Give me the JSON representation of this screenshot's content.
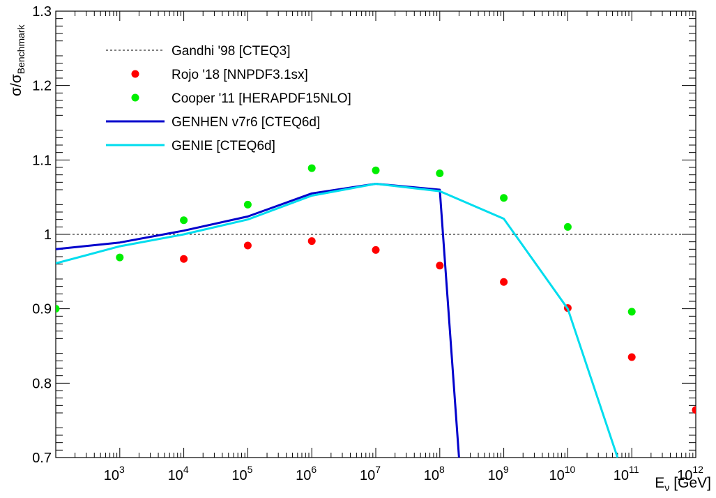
{
  "chart_data": {
    "type": "scatter",
    "xlabel": "E",
    "xlabel_sub": "ν",
    "xlabel_unit": "[GeV]",
    "ylabel": "σ/σ",
    "ylabel_sub": "Benchmark",
    "x_log_scale": true,
    "xlim": [
      100,
      1000000000000
    ],
    "ylim": [
      0.7,
      1.3
    ],
    "grid": false,
    "legend_position": "top-left",
    "y_ticks": [
      {
        "value": 0.7,
        "label": "0.7"
      },
      {
        "value": 0.8,
        "label": "0.8"
      },
      {
        "value": 0.9,
        "label": "0.9"
      },
      {
        "value": 1.0,
        "label": "1"
      },
      {
        "value": 1.1,
        "label": "1.1"
      },
      {
        "value": 1.2,
        "label": "1.2"
      },
      {
        "value": 1.3,
        "label": "1.3"
      }
    ],
    "x_ticks": [
      {
        "exp": 3,
        "base": "10",
        "sup": "3"
      },
      {
        "exp": 4,
        "base": "10",
        "sup": "4"
      },
      {
        "exp": 5,
        "base": "10",
        "sup": "5"
      },
      {
        "exp": 6,
        "base": "10",
        "sup": "6"
      },
      {
        "exp": 7,
        "base": "10",
        "sup": "7"
      },
      {
        "exp": 8,
        "base": "10",
        "sup": "8"
      },
      {
        "exp": 9,
        "base": "10",
        "sup": "9"
      },
      {
        "exp": 10,
        "base": "10",
        "sup": "10"
      },
      {
        "exp": 11,
        "base": "10",
        "sup": "11"
      },
      {
        "exp": 12,
        "base": "10",
        "sup": "12"
      }
    ],
    "series": [
      {
        "name": "Gandhi '98 [CTEQ3]",
        "style": "dashed-line",
        "color": "#000000",
        "x": [
          100,
          1000,
          10000,
          100000,
          1000000,
          10000000,
          100000000,
          1000000000,
          10000000000,
          100000000000,
          1000000000000
        ],
        "y": [
          1,
          1,
          1,
          1,
          1,
          1,
          1,
          1,
          1,
          1,
          1
        ]
      },
      {
        "name": "Rojo '18 [NNPDF3.1sx]",
        "style": "markers",
        "color": "#ff0000",
        "x": [
          10000,
          100000,
          1000000,
          10000000,
          100000000,
          1000000000,
          10000000000,
          100000000000,
          1000000000000
        ],
        "y": [
          0.967,
          0.985,
          0.991,
          0.979,
          0.958,
          0.936,
          0.901,
          0.835,
          0.764
        ]
      },
      {
        "name": "Cooper '11 [HERAPDF15NLO]",
        "style": "markers",
        "color": "#00ee00",
        "x": [
          100,
          1000,
          10000,
          100000,
          1000000,
          10000000,
          100000000,
          1000000000,
          10000000000,
          100000000000
        ],
        "y": [
          0.9,
          0.969,
          1.019,
          1.04,
          1.089,
          1.086,
          1.082,
          1.049,
          1.01,
          0.896
        ]
      },
      {
        "name": "GENHEN v7r6 [CTEQ6d]",
        "style": "line",
        "color": "#0000cc",
        "x": [
          100,
          1000,
          10000,
          100000,
          1000000,
          10000000,
          100000000,
          200000000
        ],
        "y": [
          0.98,
          0.989,
          1.005,
          1.024,
          1.055,
          1.068,
          1.06,
          0.7
        ]
      },
      {
        "name": "GENIE [CTEQ6d]",
        "style": "line",
        "color": "#00ddee",
        "x": [
          100,
          1000,
          10000,
          100000,
          1000000,
          10000000,
          100000000,
          1000000000,
          10000000000,
          60000000000
        ],
        "y": [
          0.961,
          0.984,
          1.0,
          1.02,
          1.052,
          1.068,
          1.058,
          1.021,
          0.9,
          0.7
        ]
      }
    ]
  }
}
